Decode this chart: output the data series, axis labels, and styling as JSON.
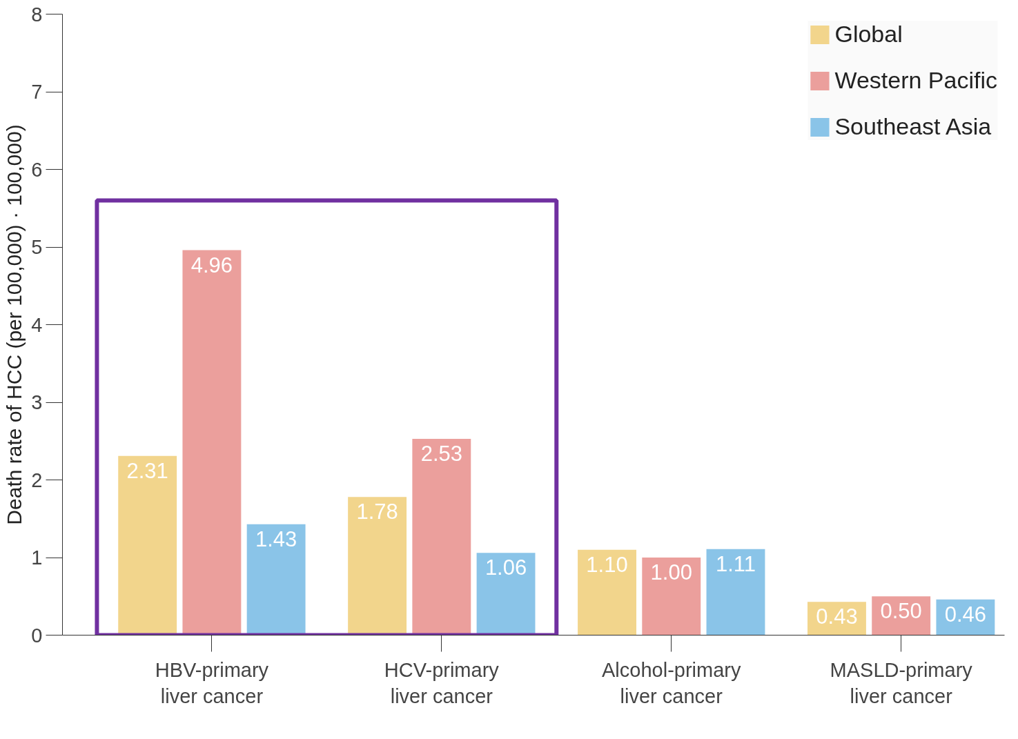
{
  "chart_data": {
    "type": "bar",
    "ylabel": "Death rate of HCC (per 100,000) · 100,000)",
    "categories": [
      "HBV-primary\nliver cancer",
      "HCV-primary\nliver cancer",
      "Alcohol-primary\nliver cancer",
      "MASLD-primary\nliver cancer"
    ],
    "series": [
      {
        "name": "Global",
        "color": "#f2d58c",
        "values": [
          2.31,
          1.78,
          1.1,
          0.43
        ],
        "value_labels": [
          "2.31",
          "1.78",
          "1.10",
          "0.43"
        ]
      },
      {
        "name": "Western Pacific",
        "color": "#eb9f9c",
        "values": [
          4.96,
          2.53,
          1.0,
          0.5
        ],
        "value_labels": [
          "4.96",
          "2.53",
          "1.00",
          "0.50"
        ]
      },
      {
        "name": "Southeast Asia",
        "color": "#8ac4e8",
        "values": [
          1.43,
          1.06,
          1.11,
          0.46
        ],
        "value_labels": [
          "1.43",
          "1.06",
          "1.11",
          "0.46"
        ]
      }
    ],
    "ylim": [
      0,
      8
    ],
    "yticks": [
      0,
      1,
      2,
      3,
      4,
      5,
      6,
      7,
      8
    ],
    "grid": false,
    "legend": "top right"
  }
}
